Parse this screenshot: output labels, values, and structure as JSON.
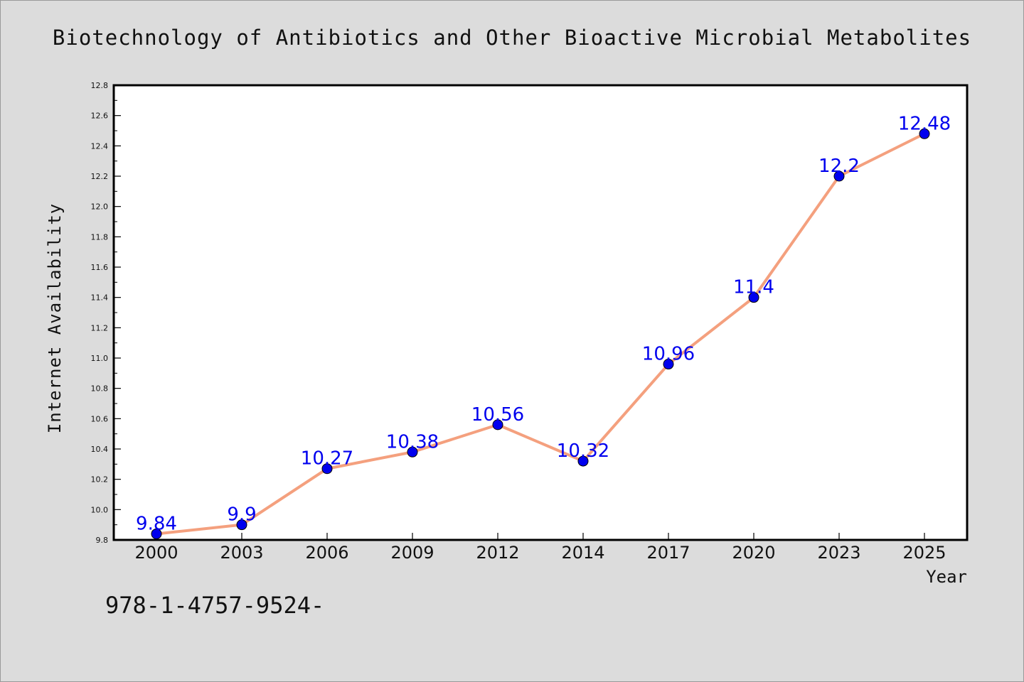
{
  "chart_data": {
    "type": "line",
    "title": "Biotechnology of Antibiotics and Other Bioactive Microbial Metabolites",
    "xlabel": "Year",
    "ylabel": "Internet Availability",
    "categories": [
      "2000",
      "2003",
      "2006",
      "2009",
      "2012",
      "2014",
      "2017",
      "2020",
      "2023",
      "2025"
    ],
    "series": [
      {
        "values": [
          9.84,
          9.9,
          10.27,
          10.38,
          10.56,
          10.32,
          10.96,
          11.4,
          12.2,
          12.48
        ],
        "data_labels": [
          "9.84",
          "9.9",
          "10.27",
          "10.38",
          "10.56",
          "10.32",
          "10.96",
          "11.4",
          "12.2",
          "12.48"
        ]
      }
    ],
    "ylim": [
      9.8,
      12.8
    ],
    "yticks": [
      "9.8",
      "10.0",
      "10.2",
      "10.4",
      "10.6",
      "10.8",
      "11.0",
      "11.2",
      "11.4",
      "11.6",
      "11.8",
      "12.0",
      "12.2",
      "12.4",
      "12.6",
      "12.8"
    ],
    "grid": false,
    "legend": "none",
    "colors": {
      "line": "#f4a07e",
      "marker": "#0000ee",
      "label": "#0000ee",
      "background": "#dcdcdc",
      "plot_background": "#ffffff"
    }
  },
  "footer": {
    "isbn_text": "978-1-4757-9524-"
  }
}
